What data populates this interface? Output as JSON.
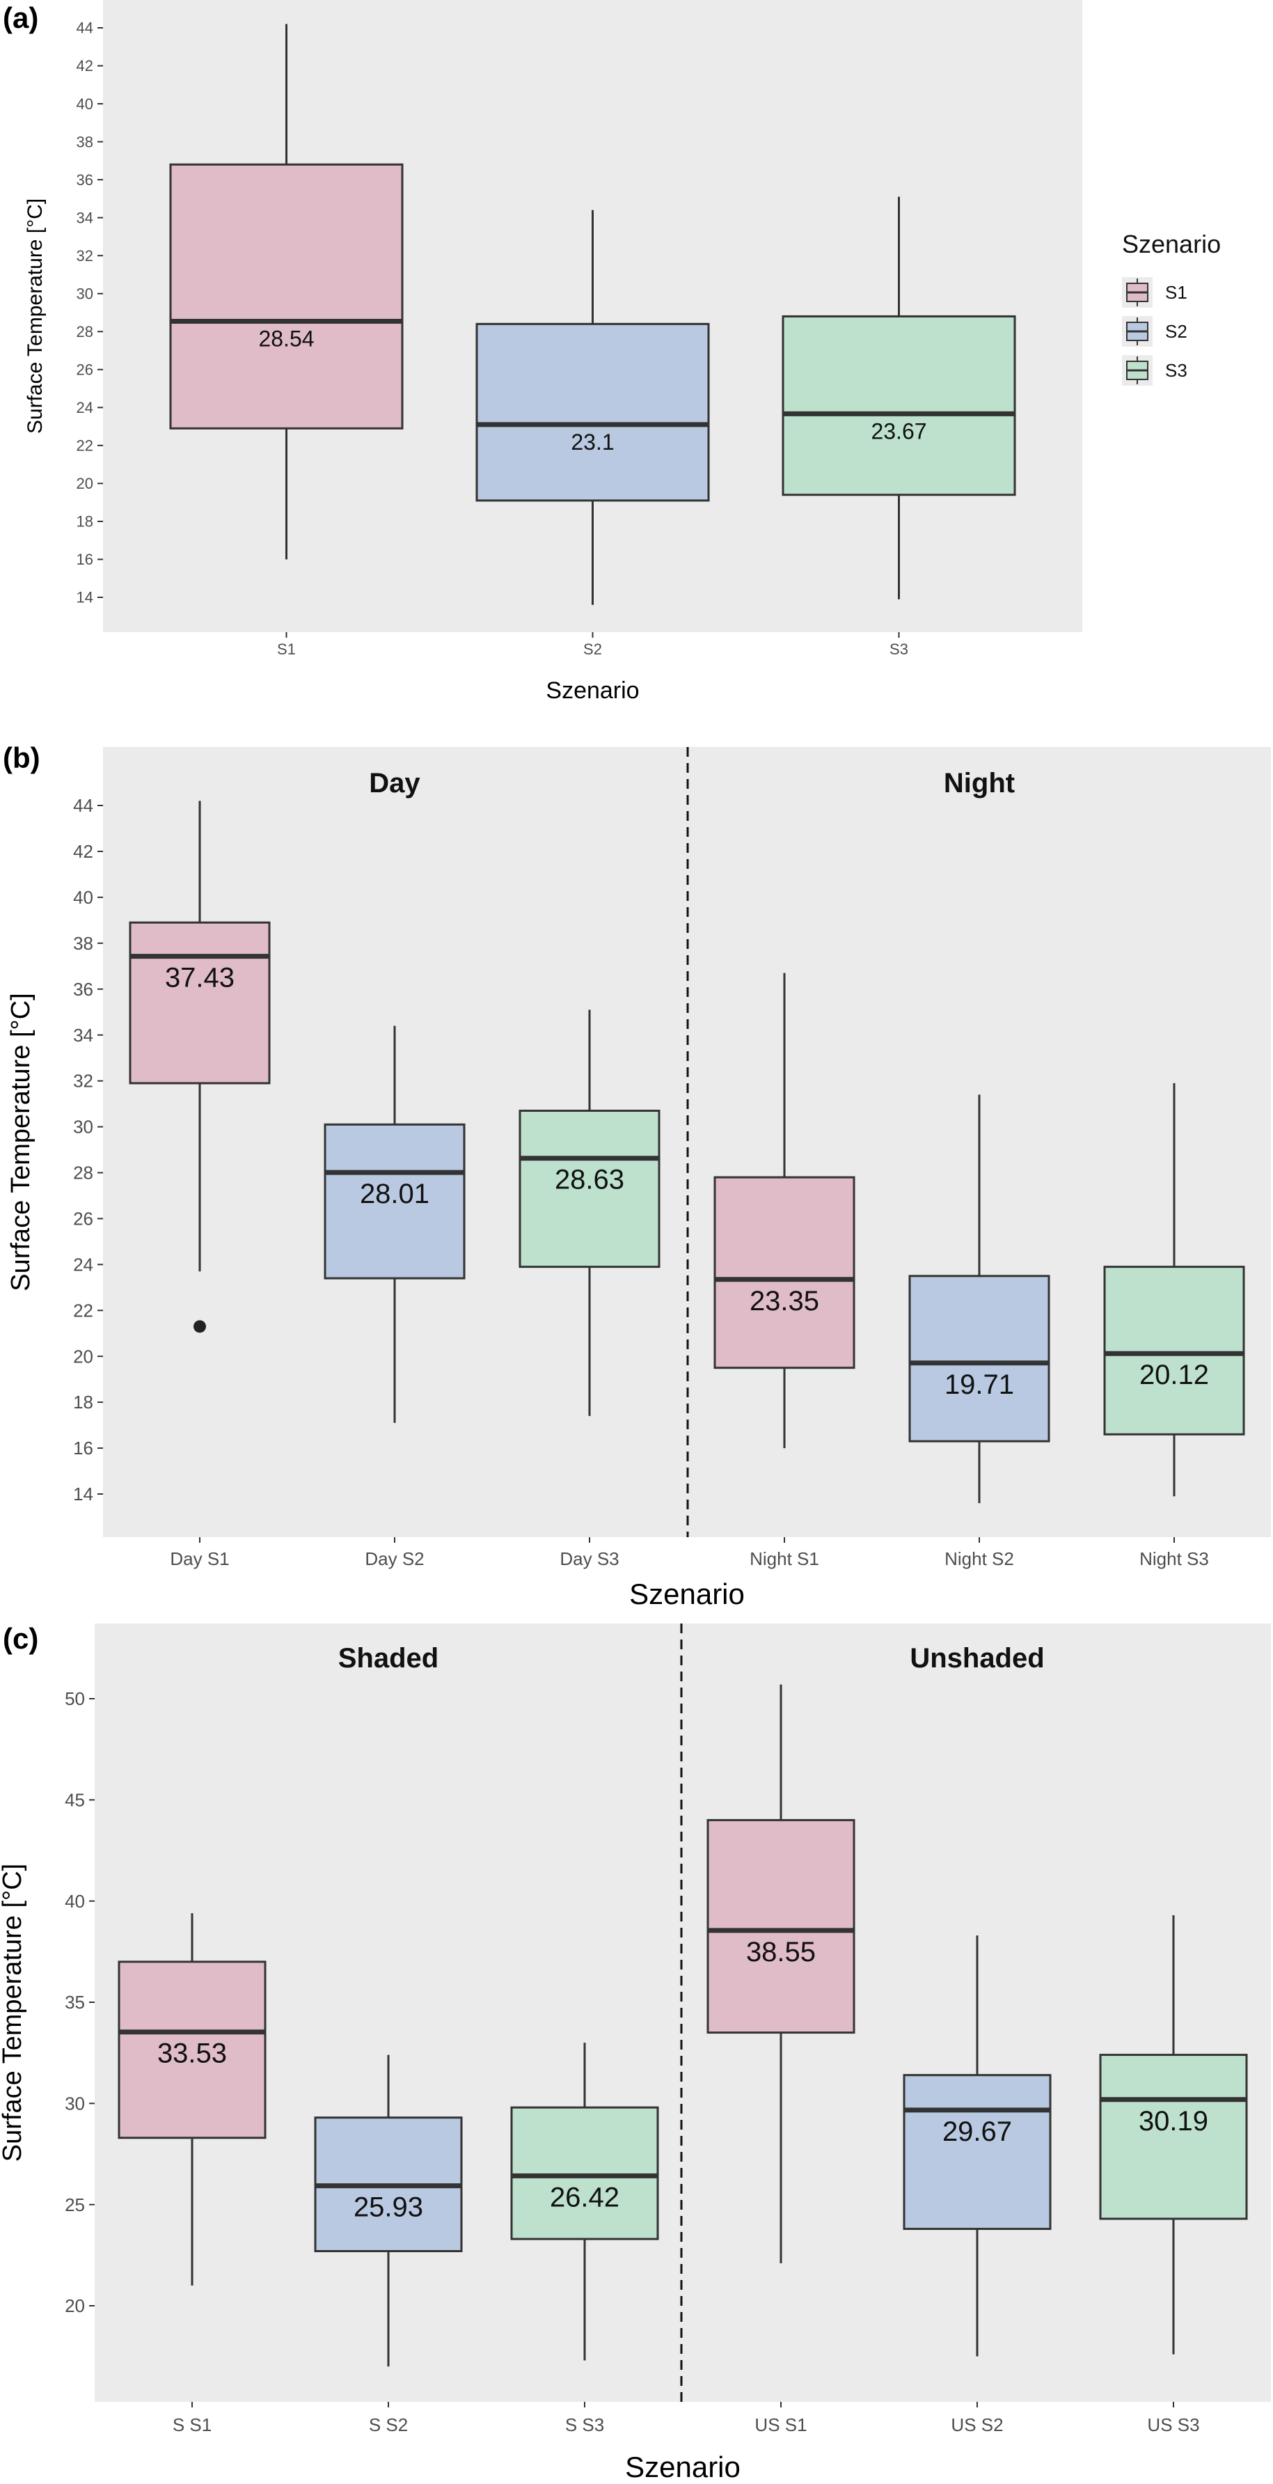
{
  "chart_data": [
    {
      "panel_label": "(a)",
      "type": "box",
      "xlabel": "Szenario",
      "ylabel": "Surface Temperature [°C]",
      "ylim": [
        12.3,
        45.7
      ],
      "yticks": [
        14,
        16,
        18,
        20,
        22,
        24,
        26,
        28,
        30,
        32,
        34,
        36,
        38,
        40,
        42,
        44
      ],
      "categories": [
        "S1",
        "S2",
        "S3"
      ],
      "legend": {
        "title": "Szenario",
        "position": "right",
        "entries": [
          {
            "label": "S1",
            "color": "#e0bcc8"
          },
          {
            "label": "S2",
            "color": "#b9c9e1"
          },
          {
            "label": "S3",
            "color": "#bde1cd"
          }
        ]
      },
      "boxes": [
        {
          "category": "S1",
          "group": "S1",
          "whisker_low": 16.0,
          "q1": 22.9,
          "median": 28.54,
          "q3": 36.8,
          "whisker_high": 44.2,
          "label": "28.54",
          "outliers": []
        },
        {
          "category": "S2",
          "group": "S2",
          "whisker_low": 13.6,
          "q1": 19.1,
          "median": 23.1,
          "q3": 28.4,
          "whisker_high": 34.4,
          "label": "23.1",
          "outliers": []
        },
        {
          "category": "S3",
          "group": "S3",
          "whisker_low": 13.9,
          "q1": 19.4,
          "median": 23.67,
          "q3": 28.8,
          "whisker_high": 35.1,
          "label": "23.67",
          "outliers": []
        }
      ]
    },
    {
      "panel_label": "(b)",
      "type": "box",
      "xlabel": "Szenario",
      "ylabel": "Surface Temperature [°C]",
      "ylim": [
        12.2,
        45.7
      ],
      "yticks": [
        14,
        16,
        18,
        20,
        22,
        24,
        26,
        28,
        30,
        32,
        34,
        36,
        38,
        40,
        42,
        44
      ],
      "facets": [
        "Day",
        "Night"
      ],
      "categories": [
        "Day S1",
        "Day S2",
        "Day S3",
        "Night S1",
        "Night S2",
        "Night S3"
      ],
      "boxes": [
        {
          "category": "Day S1",
          "group": "S1",
          "whisker_low": 23.7,
          "q1": 31.9,
          "median": 37.43,
          "q3": 38.9,
          "whisker_high": 44.2,
          "label": "37.43",
          "outliers": [
            21.3
          ]
        },
        {
          "category": "Day S2",
          "group": "S2",
          "whisker_low": 17.1,
          "q1": 23.4,
          "median": 28.01,
          "q3": 30.1,
          "whisker_high": 34.4,
          "label": "28.01",
          "outliers": []
        },
        {
          "category": "Day S3",
          "group": "S3",
          "whisker_low": 17.4,
          "q1": 23.9,
          "median": 28.63,
          "q3": 30.7,
          "whisker_high": 35.1,
          "label": "28.63",
          "outliers": []
        },
        {
          "category": "Night S1",
          "group": "S1",
          "whisker_low": 16.0,
          "q1": 19.5,
          "median": 23.35,
          "q3": 27.8,
          "whisker_high": 36.7,
          "label": "23.35",
          "outliers": []
        },
        {
          "category": "Night S2",
          "group": "S2",
          "whisker_low": 13.6,
          "q1": 16.3,
          "median": 19.71,
          "q3": 23.5,
          "whisker_high": 31.4,
          "label": "19.71",
          "outliers": []
        },
        {
          "category": "Night S3",
          "group": "S3",
          "whisker_low": 13.9,
          "q1": 16.6,
          "median": 20.12,
          "q3": 23.9,
          "whisker_high": 31.9,
          "label": "20.12",
          "outliers": []
        }
      ]
    },
    {
      "panel_label": "(c)",
      "type": "box",
      "xlabel": "Szenario",
      "ylabel": "Surface Temperature [°C]",
      "ylim": [
        15.5,
        53.8
      ],
      "yticks": [
        20,
        25,
        30,
        35,
        40,
        45,
        50
      ],
      "facets": [
        "Shaded",
        "Unshaded"
      ],
      "categories": [
        "S S1",
        "S S2",
        "S S3",
        "US S1",
        "US S2",
        "US S3"
      ],
      "boxes": [
        {
          "category": "S S1",
          "group": "S1",
          "whisker_low": 21.0,
          "q1": 28.3,
          "median": 33.53,
          "q3": 37.0,
          "whisker_high": 39.4,
          "label": "33.53",
          "outliers": []
        },
        {
          "category": "S S2",
          "group": "S2",
          "whisker_low": 17.0,
          "q1": 22.7,
          "median": 25.93,
          "q3": 29.3,
          "whisker_high": 32.4,
          "label": "25.93",
          "outliers": []
        },
        {
          "category": "S S3",
          "group": "S3",
          "whisker_low": 17.3,
          "q1": 23.3,
          "median": 26.42,
          "q3": 29.8,
          "whisker_high": 33.0,
          "label": "26.42",
          "outliers": []
        },
        {
          "category": "US S1",
          "group": "S1",
          "whisker_low": 22.1,
          "q1": 33.5,
          "median": 38.55,
          "q3": 44.0,
          "whisker_high": 50.7,
          "label": "38.55",
          "outliers": []
        },
        {
          "category": "US S2",
          "group": "S2",
          "whisker_low": 17.5,
          "q1": 23.8,
          "median": 29.67,
          "q3": 31.4,
          "whisker_high": 38.3,
          "label": "29.67",
          "outliers": []
        },
        {
          "category": "US S3",
          "group": "S3",
          "whisker_low": 17.6,
          "q1": 24.3,
          "median": 30.19,
          "q3": 32.4,
          "whisker_high": 39.3,
          "label": "30.19",
          "outliers": []
        }
      ]
    }
  ],
  "colors": {
    "panel_bg": "#ebebeb",
    "box_line": "#333333",
    "S1": "#e0bcc8",
    "S2": "#b9c9e1",
    "S3": "#bde1cd",
    "axis_text": "#4d4d4d"
  }
}
